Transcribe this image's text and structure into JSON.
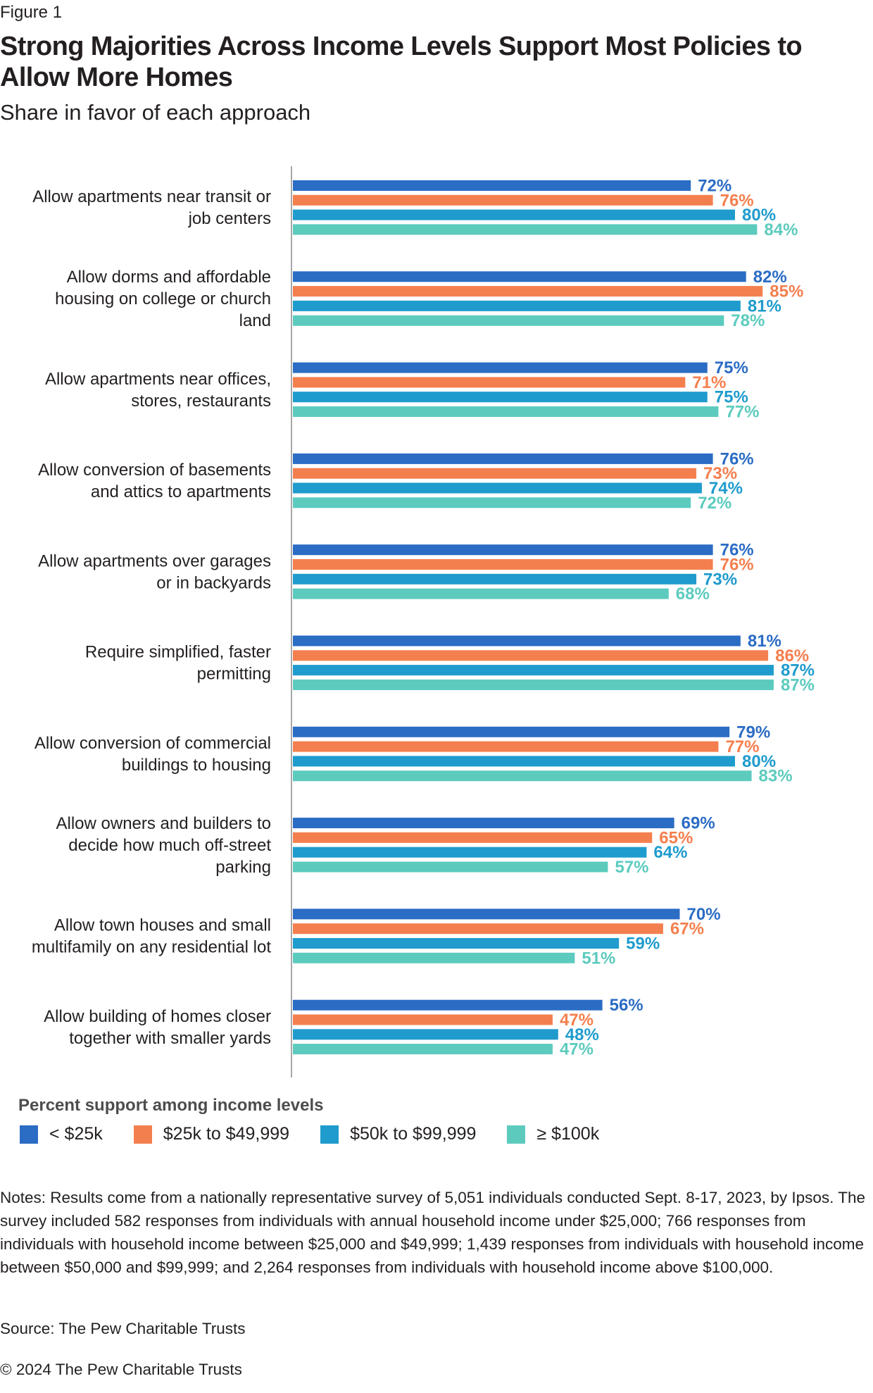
{
  "figure_label": "Figure 1",
  "title": "Strong Majorities Across Income Levels Support Most Policies to Allow More Homes",
  "subtitle": "Share in favor of each approach",
  "legend_title": "Percent support among income levels",
  "chart_data": {
    "type": "bar",
    "orientation": "horizontal",
    "title": "Strong Majorities Across Income Levels Support Most Policies to Allow More Homes",
    "subtitle": "Share in favor of each approach",
    "xlim": [
      0,
      100
    ],
    "grid": false,
    "legend_title": "Percent support among income levels",
    "legend_position": "bottom-left",
    "categories": [
      [
        "Allow apartments near transit or",
        "job centers"
      ],
      [
        "Allow dorms and affordable",
        "housing on college or church",
        "land"
      ],
      [
        "Allow apartments near offices,",
        "stores, restaurants"
      ],
      [
        "Allow conversion of basements",
        "and attics to apartments"
      ],
      [
        "Allow apartments over garages",
        "or in backyards"
      ],
      [
        "Require simplified, faster",
        "permitting"
      ],
      [
        "Allow conversion of commercial",
        "buildings to housing"
      ],
      [
        "Allow owners and builders to",
        "decide how much off-street",
        "parking"
      ],
      [
        "Allow town houses and small",
        "multifamily on any residential lot"
      ],
      [
        "Allow building of homes closer",
        "together with smaller yards"
      ]
    ],
    "series": [
      {
        "name": "< $25k",
        "color": "#2b6cc4",
        "values": [
          72,
          82,
          75,
          76,
          76,
          81,
          79,
          69,
          70,
          56
        ]
      },
      {
        "name": "$25k to $49,999",
        "color": "#f47f4e",
        "values": [
          76,
          85,
          71,
          73,
          76,
          86,
          77,
          65,
          67,
          47
        ]
      },
      {
        "name": "$50k to $99,999",
        "color": "#1f9bcd",
        "values": [
          80,
          81,
          75,
          74,
          73,
          87,
          80,
          64,
          59,
          48
        ]
      },
      {
        "name": "≥ $100k",
        "color": "#5ccbbe",
        "values": [
          84,
          78,
          77,
          72,
          68,
          87,
          83,
          57,
          51,
          47
        ]
      }
    ],
    "value_suffix": "%"
  },
  "notes": "Notes: Results come from a nationally representative survey of 5,051 individuals conducted Sept. 8-17, 2023, by Ipsos. The survey included 582 responses from individuals with annual household income under $25,000; 766 responses from individuals with household income between $25,000 and $49,999; 1,439 responses from individuals with household income between $50,000 and $99,999; and 2,264 responses from individuals with household income above $100,000.",
  "source": "Source: The Pew Charitable Trusts",
  "copyright": "© 2024 The Pew Charitable Trusts"
}
